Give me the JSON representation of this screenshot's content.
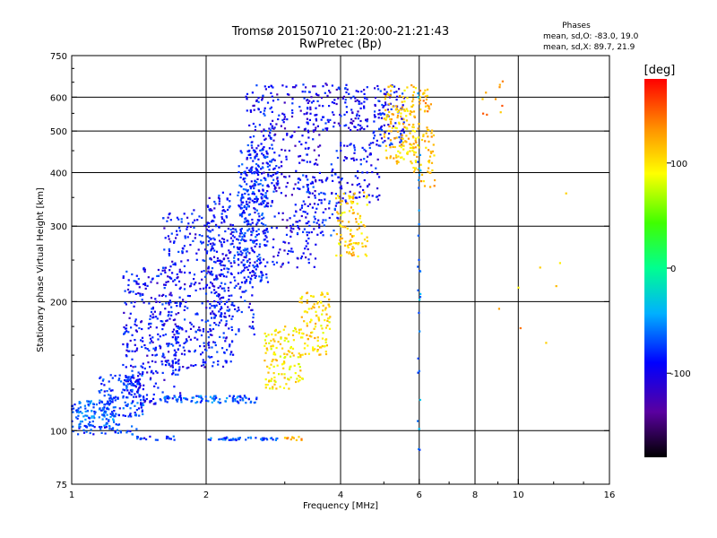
{
  "chart_data": {
    "type": "scatter",
    "title": "Tromsø 20150710 21:20:00-21:21:43",
    "subtitle": "RwPretec (Bp)",
    "xlabel": "Frequency [MHz]",
    "ylabel": "Stationary phase Virtual Height [km]",
    "x_scale": "log",
    "y_scale": "log",
    "xlim": [
      1,
      16
    ],
    "ylim": [
      75,
      750
    ],
    "x_ticks": [
      1,
      2,
      4,
      6,
      8,
      10,
      16
    ],
    "x_tick_labels": [
      "1",
      "2",
      "4",
      "6",
      "8",
      "10",
      "16"
    ],
    "y_ticks": [
      75,
      100,
      200,
      300,
      400,
      500,
      600,
      750
    ],
    "y_tick_labels": [
      "75",
      "100",
      "200",
      "300",
      "400",
      "500",
      "600",
      "750"
    ],
    "grid": true,
    "phases_stats": {
      "heading": "Phases",
      "line_o": "mean, sd,O: -83.0, 19.0",
      "line_x": "mean, sd,X:  89.7, 21.9"
    },
    "colorbar": {
      "label": "[deg]",
      "range": [
        -180,
        180
      ],
      "ticks": [
        100,
        0,
        -100
      ],
      "tick_labels": [
        "100",
        "0",
        "-100"
      ]
    },
    "clusters": [
      {
        "x": [
          1.0,
          1.28
        ],
        "y": [
          102,
          118
        ],
        "phase": -75,
        "count": 120
      },
      {
        "x": [
          1.15,
          1.45
        ],
        "y": [
          108,
          135
        ],
        "phase": -85,
        "count": 140
      },
      {
        "x": [
          1.3,
          1.75
        ],
        "y": [
          115,
          240
        ],
        "phase": -100,
        "count": 320
      },
      {
        "x": [
          1.6,
          2.3
        ],
        "y": [
          140,
          330
        ],
        "phase": -100,
        "count": 380
      },
      {
        "x": [
          2.0,
          2.6
        ],
        "y": [
          165,
          360
        ],
        "phase": -98,
        "count": 260
      },
      {
        "x": [
          2.35,
          2.75
        ],
        "y": [
          220,
          460
        ],
        "phase": -90,
        "count": 260
      },
      {
        "x": [
          2.45,
          2.9
        ],
        "y": [
          330,
          640
        ],
        "phase": -100,
        "count": 160
      },
      {
        "x": [
          2.8,
          3.6
        ],
        "y": [
          240,
          640
        ],
        "phase": -108,
        "count": 220
      },
      {
        "x": [
          3.3,
          4.6
        ],
        "y": [
          500,
          650
        ],
        "phase": -105,
        "count": 140
      },
      {
        "x": [
          3.2,
          4.0
        ],
        "y": [
          280,
          400
        ],
        "phase": -95,
        "count": 90
      },
      {
        "x": [
          3.8,
          4.9
        ],
        "y": [
          340,
          470
        ],
        "phase": -100,
        "count": 90
      },
      {
        "x": [
          4.7,
          5.6
        ],
        "y": [
          460,
          640
        ],
        "phase": -98,
        "count": 100
      },
      {
        "x": [
          2.7,
          3.3
        ],
        "y": [
          125,
          175
        ],
        "phase": 100,
        "count": 130
      },
      {
        "x": [
          3.2,
          3.8
        ],
        "y": [
          150,
          210
        ],
        "phase": 105,
        "count": 110
      },
      {
        "x": [
          3.9,
          4.6
        ],
        "y": [
          255,
          360
        ],
        "phase": 108,
        "count": 110
      },
      {
        "x": [
          5.0,
          5.9
        ],
        "y": [
          420,
          640
        ],
        "phase": 110,
        "count": 150
      },
      {
        "x": [
          5.8,
          6.5
        ],
        "y": [
          370,
          520
        ],
        "phase": 115,
        "count": 60
      },
      {
        "x": [
          6.0,
          6.4
        ],
        "y": [
          550,
          640
        ],
        "phase": 125,
        "count": 25
      },
      {
        "x": [
          1.55,
          2.6
        ],
        "y": [
          116,
          121
        ],
        "phase": -75,
        "count": 90
      },
      {
        "x": [
          1.0,
          1.4
        ],
        "y": [
          98,
          103
        ],
        "phase": -88,
        "count": 40
      },
      {
        "x": [
          1.4,
          1.7
        ],
        "y": [
          95,
          97
        ],
        "phase": -92,
        "count": 20
      },
      {
        "x": [
          2.0,
          2.9
        ],
        "y": [
          95,
          96.5
        ],
        "phase": -78,
        "count": 45
      },
      {
        "x": [
          3.0,
          3.3
        ],
        "y": [
          95,
          97
        ],
        "phase": 130,
        "count": 12
      },
      {
        "x": [
          5.95,
          6.05
        ],
        "y": [
          90,
          640
        ],
        "phase": -60,
        "count": 30
      },
      {
        "x": [
          8.3,
          9.3
        ],
        "y": [
          540,
          660
        ],
        "phase": 130,
        "count": 10
      },
      {
        "x": [
          8.5,
          13.5
        ],
        "y": [
          150,
          380
        ],
        "phase": 120,
        "count": 8
      }
    ]
  }
}
